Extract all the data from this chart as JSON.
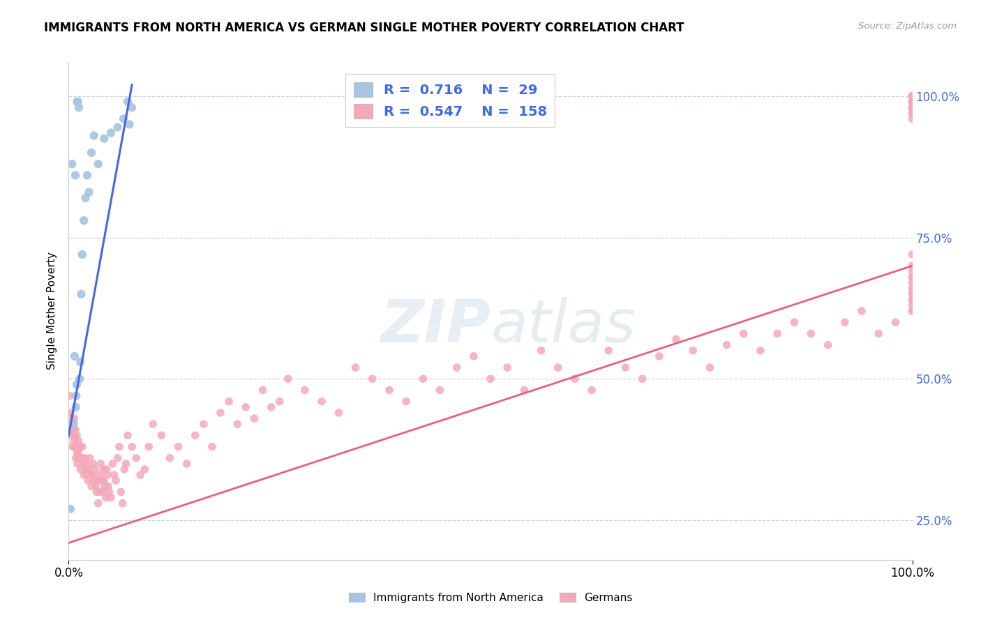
{
  "title": "IMMIGRANTS FROM NORTH AMERICA VS GERMAN SINGLE MOTHER POVERTY CORRELATION CHART",
  "source": "Source: ZipAtlas.com",
  "ylabel": "Single Mother Poverty",
  "legend_label_blue": "Immigrants from North America",
  "legend_label_pink": "Germans",
  "r_blue": "0.716",
  "n_blue": "29",
  "r_pink": "0.547",
  "n_pink": "158",
  "blue_color": "#a8c4e0",
  "pink_color": "#f4a8b8",
  "line_blue": "#4169e1",
  "line_pink": "#e8607a",
  "blue_scatter_x": [
    0.2,
    0.4,
    0.6,
    0.7,
    0.8,
    0.85,
    0.9,
    0.95,
    1.0,
    1.1,
    1.2,
    1.3,
    1.4,
    1.5,
    1.6,
    1.8,
    2.0,
    2.2,
    2.4,
    2.7,
    3.0,
    3.5,
    4.2,
    5.0,
    5.8,
    6.5,
    7.0,
    7.2,
    7.5
  ],
  "blue_scatter_y": [
    0.27,
    0.88,
    0.42,
    0.54,
    0.86,
    0.45,
    0.47,
    0.49,
    0.99,
    0.99,
    0.98,
    0.5,
    0.53,
    0.65,
    0.72,
    0.78,
    0.82,
    0.86,
    0.83,
    0.9,
    0.93,
    0.88,
    0.925,
    0.935,
    0.945,
    0.96,
    0.99,
    0.95,
    0.98
  ],
  "pink_scatter_x": [
    0.1,
    0.2,
    0.3,
    0.35,
    0.4,
    0.5,
    0.55,
    0.6,
    0.65,
    0.7,
    0.75,
    0.8,
    0.85,
    0.9,
    0.95,
    1.0,
    1.05,
    1.1,
    1.15,
    1.2,
    1.3,
    1.4,
    1.5,
    1.6,
    1.7,
    1.8,
    1.9,
    2.0,
    2.1,
    2.2,
    2.3,
    2.4,
    2.5,
    2.6,
    2.7,
    2.8,
    2.9,
    3.0,
    3.1,
    3.2,
    3.3,
    3.4,
    3.5,
    3.6,
    3.7,
    3.8,
    3.9,
    4.0,
    4.1,
    4.2,
    4.3,
    4.4,
    4.5,
    4.6,
    4.7,
    4.8,
    5.0,
    5.2,
    5.4,
    5.6,
    5.8,
    6.0,
    6.2,
    6.4,
    6.6,
    6.8,
    7.0,
    7.5,
    8.0,
    8.5,
    9.0,
    9.5,
    10.0,
    11.0,
    12.0,
    13.0,
    14.0,
    15.0,
    16.0,
    17.0,
    18.0,
    19.0,
    20.0,
    21.0,
    22.0,
    23.0,
    24.0,
    25.0,
    26.0,
    28.0,
    30.0,
    32.0,
    34.0,
    36.0,
    38.0,
    40.0,
    42.0,
    44.0,
    46.0,
    48.0,
    50.0,
    52.0,
    54.0,
    56.0,
    58.0,
    60.0,
    62.0,
    64.0,
    66.0,
    68.0,
    70.0,
    72.0,
    74.0,
    76.0,
    78.0,
    80.0,
    82.0,
    84.0,
    86.0,
    88.0,
    90.0,
    92.0,
    94.0,
    96.0,
    98.0,
    100.0,
    100.0,
    100.0,
    100.0,
    100.0,
    100.0,
    100.0,
    100.0,
    100.0,
    100.0,
    100.0,
    100.0,
    100.0,
    100.0,
    100.0,
    100.0,
    100.0,
    100.0,
    100.0,
    100.0,
    100.0,
    100.0,
    100.0,
    100.0,
    100.0,
    100.0,
    100.0,
    100.0,
    100.0,
    100.0,
    100.0,
    100.0,
    100.0
  ],
  "pink_scatter_y": [
    0.47,
    0.44,
    0.43,
    0.4,
    0.42,
    0.38,
    0.41,
    0.39,
    0.43,
    0.4,
    0.38,
    0.41,
    0.36,
    0.38,
    0.4,
    0.37,
    0.35,
    0.37,
    0.39,
    0.36,
    0.38,
    0.34,
    0.36,
    0.38,
    0.35,
    0.33,
    0.36,
    0.34,
    0.35,
    0.33,
    0.32,
    0.34,
    0.36,
    0.33,
    0.31,
    0.33,
    0.35,
    0.32,
    0.34,
    0.31,
    0.3,
    0.32,
    0.28,
    0.3,
    0.33,
    0.35,
    0.32,
    0.3,
    0.34,
    0.32,
    0.31,
    0.29,
    0.34,
    0.33,
    0.31,
    0.3,
    0.29,
    0.35,
    0.33,
    0.32,
    0.36,
    0.38,
    0.3,
    0.28,
    0.34,
    0.35,
    0.4,
    0.38,
    0.36,
    0.33,
    0.34,
    0.38,
    0.42,
    0.4,
    0.36,
    0.38,
    0.35,
    0.4,
    0.42,
    0.38,
    0.44,
    0.46,
    0.42,
    0.45,
    0.43,
    0.48,
    0.45,
    0.46,
    0.5,
    0.48,
    0.46,
    0.44,
    0.52,
    0.5,
    0.48,
    0.46,
    0.5,
    0.48,
    0.52,
    0.54,
    0.5,
    0.52,
    0.48,
    0.55,
    0.52,
    0.5,
    0.48,
    0.55,
    0.52,
    0.5,
    0.54,
    0.57,
    0.55,
    0.52,
    0.56,
    0.58,
    0.55,
    0.58,
    0.6,
    0.58,
    0.56,
    0.6,
    0.62,
    0.58,
    0.6,
    0.62,
    0.64,
    0.66,
    0.68,
    0.64,
    0.62,
    0.65,
    0.63,
    0.67,
    0.65,
    0.7,
    0.68,
    0.66,
    0.69,
    0.72,
    0.98,
    1.0,
    0.97,
    0.99,
    1.0,
    0.97,
    0.99,
    1.0,
    0.98,
    0.97,
    0.99,
    1.0,
    0.98,
    0.96,
    0.97,
    0.99,
    1.0,
    0.98
  ],
  "blue_line_x": [
    0.0,
    7.5
  ],
  "blue_line_y": [
    0.4,
    1.02
  ],
  "pink_line_x": [
    0.0,
    100.0
  ],
  "pink_line_y": [
    0.21,
    0.7
  ],
  "xlim": [
    0,
    100
  ],
  "ylim": [
    0.18,
    1.06
  ],
  "xticks": [
    0,
    100
  ],
  "xticklabels": [
    "0.0%",
    "100.0%"
  ],
  "yticks": [
    0.25,
    0.5,
    0.75,
    1.0
  ],
  "yticklabels_right": [
    "25.0%",
    "50.0%",
    "75.0%",
    "100.0%"
  ]
}
